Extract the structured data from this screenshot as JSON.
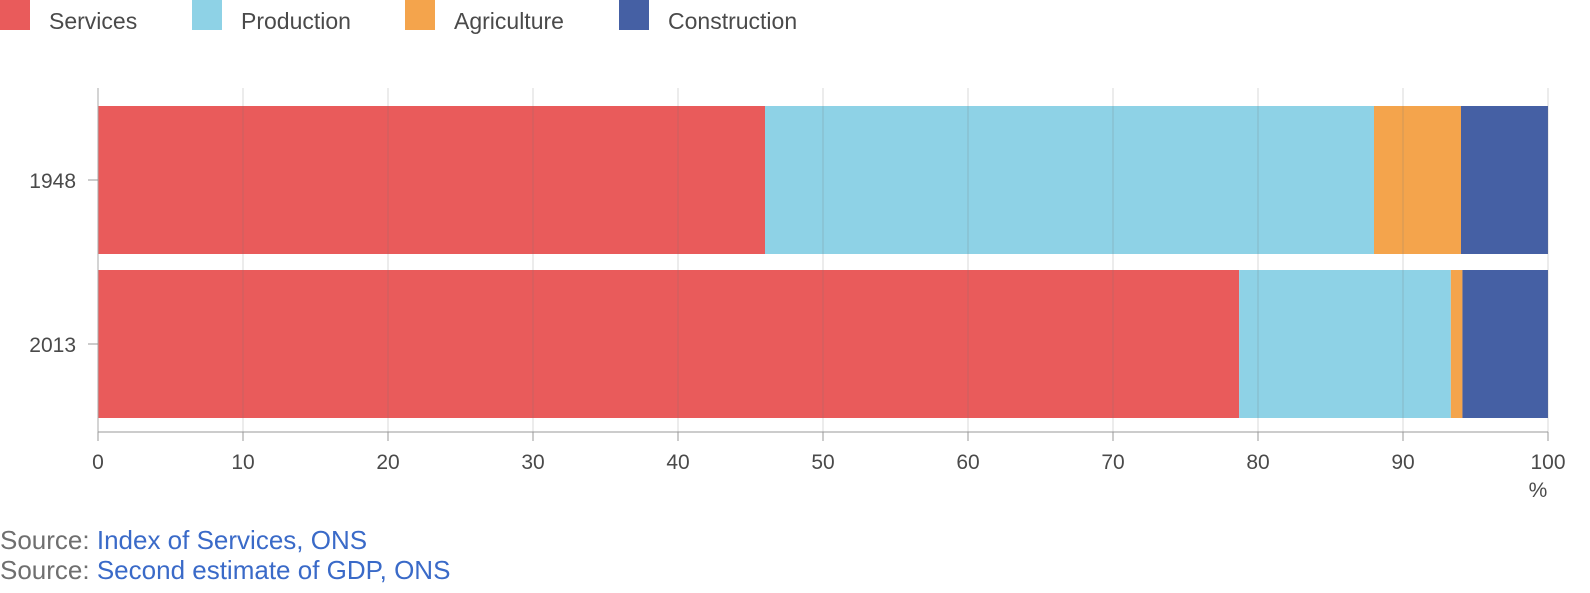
{
  "chart_data": {
    "type": "bar",
    "orientation": "horizontal",
    "stacked": true,
    "categories": [
      "1948",
      "2013"
    ],
    "series": [
      {
        "name": "Services",
        "color": "#e95b5b",
        "values": [
          46.0,
          78.7
        ]
      },
      {
        "name": "Production",
        "color": "#8ed2e6",
        "values": [
          42.0,
          14.6
        ]
      },
      {
        "name": "Agriculture",
        "color": "#f4a44c",
        "values": [
          6.0,
          0.8
        ]
      },
      {
        "name": "Construction",
        "color": "#4560a4",
        "values": [
          6.0,
          5.9
        ]
      }
    ],
    "xlim": [
      0,
      100
    ],
    "xticks": [
      "0",
      "10",
      "20",
      "30",
      "40",
      "50",
      "60",
      "70",
      "80",
      "90",
      "100"
    ],
    "xunit": "%",
    "grid": true,
    "legend_position": "top-left"
  },
  "sources": [
    {
      "prefix": "Source:",
      "link": "Index of Services, ONS"
    },
    {
      "prefix": "Source:",
      "link": "Second estimate of GDP, ONS"
    }
  ]
}
